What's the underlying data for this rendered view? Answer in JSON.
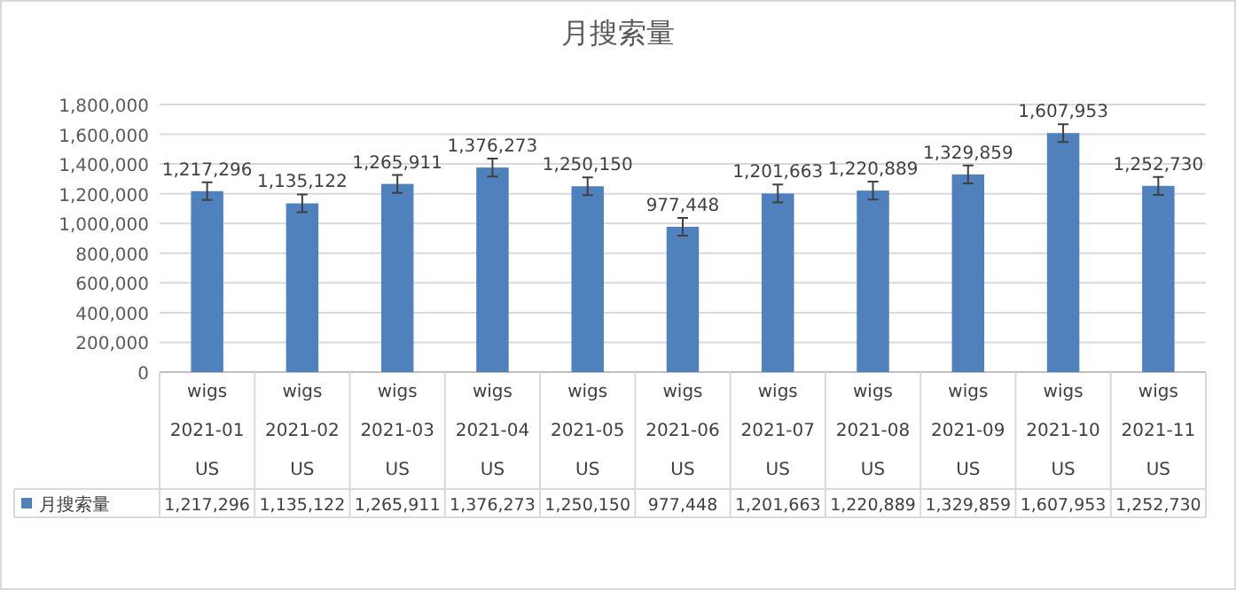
{
  "chart_data": {
    "type": "bar",
    "title": "月搜索量",
    "categories": [
      "wigs\n2021-01\nUS",
      "wigs\n2021-02\nUS",
      "wigs\n2021-03\nUS",
      "wigs\n2021-04\nUS",
      "wigs\n2021-05\nUS",
      "wigs\n2021-06\nUS",
      "wigs\n2021-07\nUS",
      "wigs\n2021-08\nUS",
      "wigs\n2021-09\nUS",
      "wigs\n2021-10\nUS",
      "wigs\n2021-11\nUS"
    ],
    "series": [
      {
        "name": "月搜索量",
        "color": "#4f81bd",
        "values": [
          1217296,
          1135122,
          1265911,
          1376273,
          1250150,
          977448,
          1201663,
          1220889,
          1329859,
          1607953,
          1252730
        ],
        "value_labels": [
          "1,217,296",
          "1,135,122",
          "1,265,911",
          "1,376,273",
          "1,250,150",
          "977,448",
          "1,201,663",
          "1,220,889",
          "1,329,859",
          "1,607,953",
          "1,252,730"
        ],
        "errors": [
          60000,
          60000,
          60000,
          60000,
          60000,
          60000,
          60000,
          60000,
          60000,
          60000,
          60000
        ]
      }
    ],
    "ylim": [
      0,
      1800000
    ],
    "yticks": [
      {
        "value": 0,
        "label": "0"
      },
      {
        "value": 200000,
        "label": "200,000"
      },
      {
        "value": 400000,
        "label": "400,000"
      },
      {
        "value": 600000,
        "label": "600,000"
      },
      {
        "value": 800000,
        "label": "800,000"
      },
      {
        "value": 1000000,
        "label": "1,000,000"
      },
      {
        "value": 1200000,
        "label": "1,200,000"
      },
      {
        "value": 1400000,
        "label": "1,400,000"
      },
      {
        "value": 1600000,
        "label": "1,600,000"
      },
      {
        "value": 1800000,
        "label": "1,800,000"
      }
    ],
    "grid": "y",
    "legend": "bottom"
  }
}
